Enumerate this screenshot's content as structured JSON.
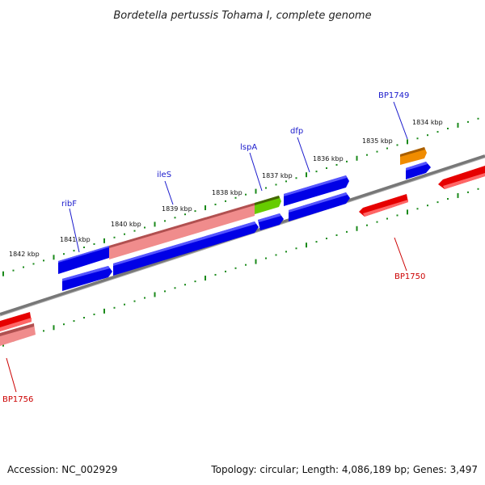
{
  "title": "Bordetella pertussis Tohama I, complete genome",
  "footer": {
    "accession": "Accession: NC_002929",
    "topology": "Topology: circular; Length: 4,086,189 bp; Genes: 3,497"
  },
  "scale_labels": [
    "1842 kbp",
    "1841 kbp",
    "1840 kbp",
    "1839 kbp",
    "1838 kbp",
    "1837 kbp",
    "1836 kbp",
    "1835 kbp",
    "1834 kbp"
  ],
  "gene_labels": {
    "ribF": "ribF",
    "ileS": "ileS",
    "lspA": "lspA",
    "dfp": "dfp",
    "bp1749": "BP1749",
    "bp1750": "BP1750",
    "bp1756": "BP1756"
  },
  "colors": {
    "cds_blue": "#0000e6",
    "rrna_pink": "#f08c8c",
    "red_gene": "#e60000",
    "orange_gene": "#f08c00",
    "green_gene": "#66cc00",
    "backbone": "#777777",
    "tick_green": "#1a8a1a"
  }
}
